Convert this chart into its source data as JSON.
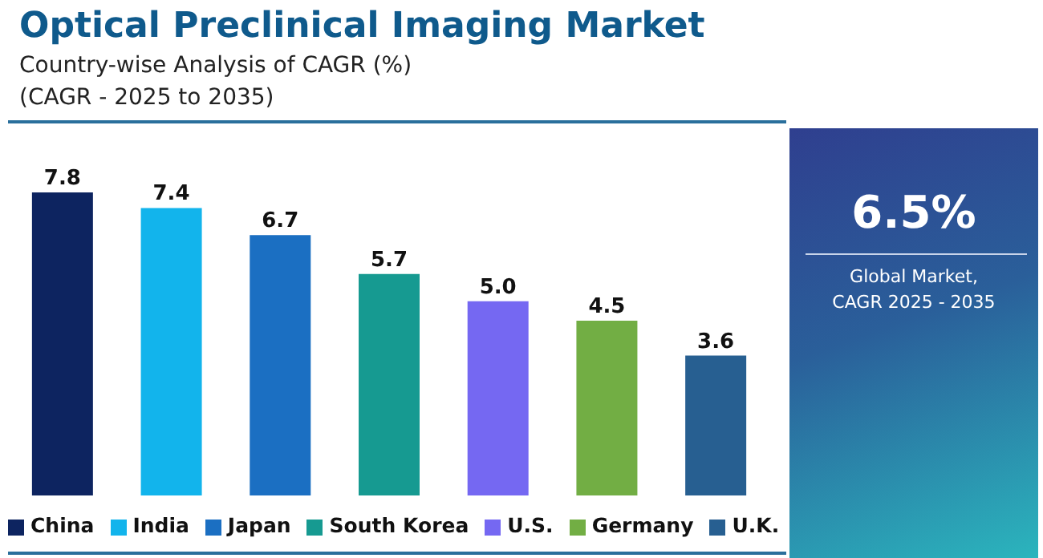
{
  "chart_data": [
    {
      "type": "bar",
      "title": "Optical Preclinical Imaging Market",
      "subtitle": "Country-wise Analysis of CAGR (%)\n(CAGR - 2025 to 2035)",
      "categories": [
        null,
        null,
        null,
        null,
        null,
        null,
        null
      ],
      "series": [
        {
          "name": "China",
          "color": "#0d2460",
          "values": [
            7.8,
            null,
            null,
            null,
            null,
            null,
            null
          ],
          "value_labels": [
            "7.8",
            null,
            null,
            null,
            null,
            null,
            null
          ]
        },
        {
          "name": "India",
          "color": "#12b4ec",
          "values": [
            null,
            7.4,
            null,
            null,
            null,
            null,
            null
          ],
          "value_labels": [
            null,
            "7.4",
            null,
            null,
            null,
            null,
            null
          ]
        },
        {
          "name": "Japan",
          "color": "#1b6fc2",
          "values": [
            null,
            null,
            6.7,
            null,
            null,
            null,
            null
          ],
          "value_labels": [
            null,
            null,
            "6.7",
            null,
            null,
            null,
            null
          ]
        },
        {
          "name": "South Korea",
          "color": "#169a91",
          "values": [
            null,
            null,
            null,
            5.7,
            null,
            null,
            null
          ],
          "value_labels": [
            null,
            null,
            null,
            "5.7",
            null,
            null,
            null
          ]
        },
        {
          "name": "U.S.",
          "color": "#7568f2",
          "values": [
            null,
            null,
            null,
            null,
            5.0,
            null,
            null
          ],
          "value_labels": [
            null,
            null,
            null,
            null,
            "5.0",
            null,
            null
          ]
        },
        {
          "name": "Germany",
          "color": "#72ae44",
          "values": [
            null,
            null,
            null,
            null,
            null,
            4.5,
            null
          ],
          "value_labels": [
            null,
            null,
            null,
            null,
            null,
            "4.5",
            null
          ]
        },
        {
          "name": "U.K.",
          "color": "#275f91",
          "values": [
            null,
            null,
            null,
            null,
            null,
            null,
            3.6
          ],
          "value_labels": [
            null,
            null,
            null,
            null,
            null,
            null,
            "3.6"
          ]
        }
      ],
      "stacked": true,
      "tick_labels": false,
      "legend": "bottom"
    },
    {
      "type": "other",
      "title": "6.5%",
      "subtitle": "Global Market,\nCAGR 2025 - 2035"
    }
  ]
}
